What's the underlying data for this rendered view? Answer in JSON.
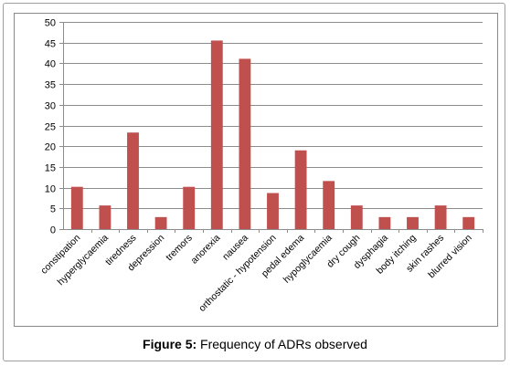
{
  "caption": {
    "label": "Figure 5:",
    "text": " Frequency of ADRs observed"
  },
  "chart_data": {
    "type": "bar",
    "title": "",
    "xlabel": "",
    "ylabel": "",
    "ylim": [
      0,
      50
    ],
    "yticks": [
      0,
      5,
      10,
      15,
      20,
      25,
      30,
      35,
      40,
      45,
      50
    ],
    "grid": true,
    "legend": "none",
    "bar_color": "#c0504d",
    "categories": [
      "constipation",
      "hyperglycaemia",
      "tiredness",
      "depression",
      "tremors",
      "anorexia",
      "nausea",
      "orthostatic - hypotension",
      "pedal edema",
      "hypoglycaemia",
      "dry cough",
      "dysphagia",
      "body itching",
      "skin rashes",
      "blurred vision"
    ],
    "values": [
      10.2,
      5.7,
      23.3,
      2.9,
      10.2,
      45.5,
      41.1,
      8.7,
      19.0,
      11.6,
      5.7,
      2.9,
      2.9,
      5.7,
      2.9
    ]
  }
}
